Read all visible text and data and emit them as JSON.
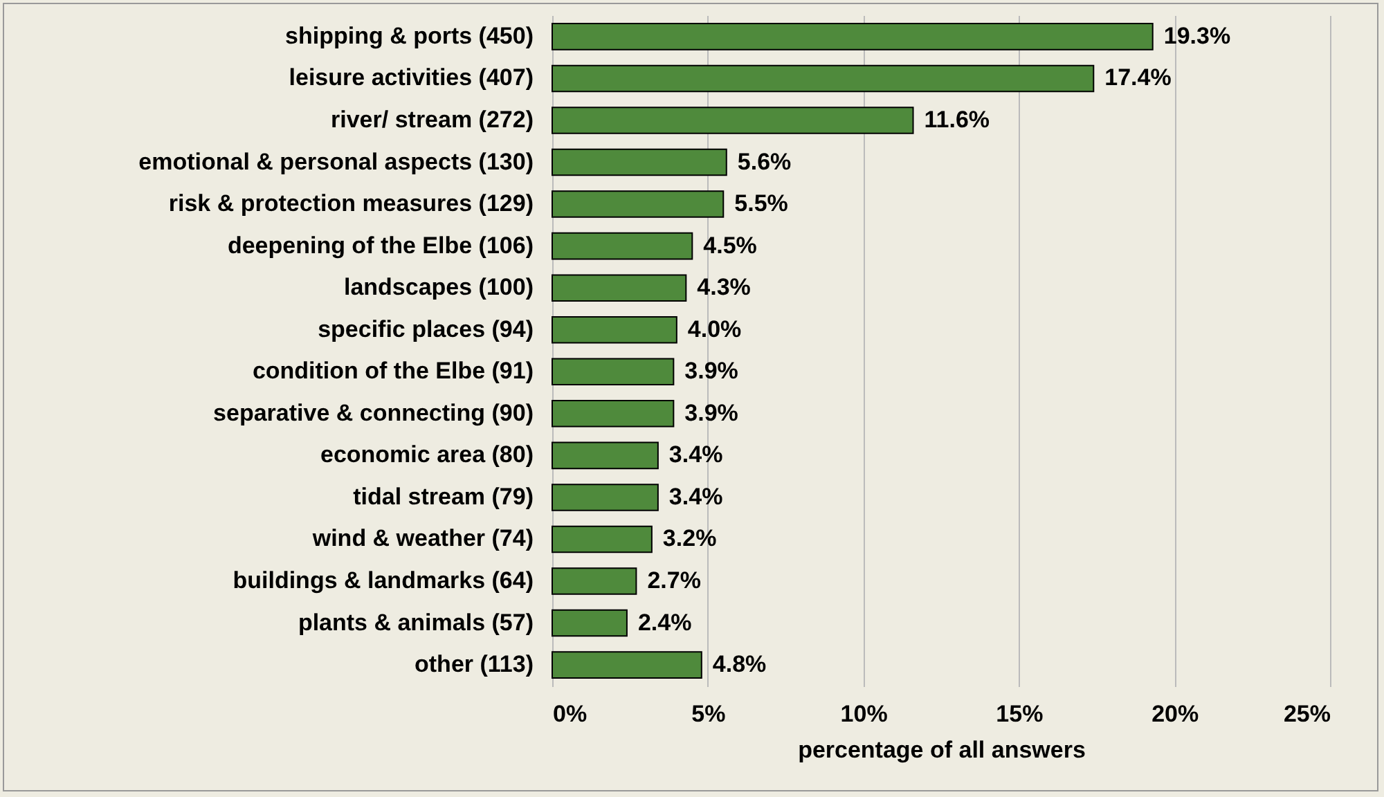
{
  "chart_data": {
    "type": "bar",
    "orientation": "horizontal",
    "xlabel": "percentage of all answers",
    "categories": [
      "shipping & ports (450)",
      "leisure activities (407)",
      "river/ stream (272)",
      "emotional & personal aspects (130)",
      "risk & protection measures (129)",
      "deepening of the Elbe (106)",
      "landscapes (100)",
      "specific places (94)",
      "condition of the Elbe (91)",
      "separative & connecting (90)",
      "economic area (80)",
      "tidal stream (79)",
      "wind & weather (74)",
      "buildings & landmarks (64)",
      "plants & animals (57)",
      "other (113)"
    ],
    "values": [
      19.3,
      17.4,
      11.6,
      5.6,
      5.5,
      4.5,
      4.3,
      4.0,
      3.9,
      3.9,
      3.4,
      3.4,
      3.2,
      2.7,
      2.4,
      4.8
    ],
    "value_labels": [
      "19.3%",
      "17.4%",
      "11.6%",
      "5.6%",
      "5.5%",
      "4.5%",
      "4.3%",
      "4.0%",
      "3.9%",
      "3.9%",
      "3.4%",
      "3.4%",
      "3.2%",
      "2.7%",
      "2.4%",
      "4.8%"
    ],
    "color": "#4f8a3c",
    "xlim": [
      0,
      25
    ],
    "xticks": [
      {
        "value": 0,
        "label": "0%"
      },
      {
        "value": 5,
        "label": "5%"
      },
      {
        "value": 10,
        "label": "10%"
      },
      {
        "value": 15,
        "label": "15%"
      },
      {
        "value": 20,
        "label": "20%"
      },
      {
        "value": 25,
        "label": "25%"
      }
    ],
    "grid": "x"
  }
}
